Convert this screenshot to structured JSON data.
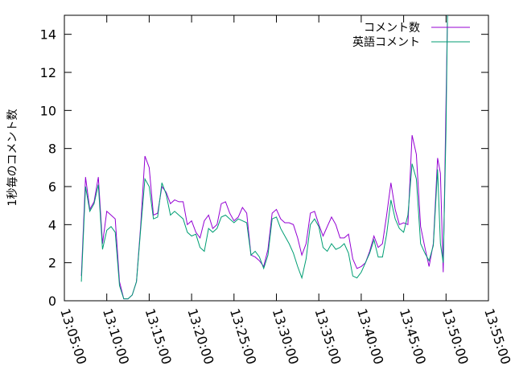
{
  "chart_data": {
    "type": "line",
    "title": "",
    "xlabel": "",
    "ylabel": "1秒毎のコメント数",
    "x_ticks": [
      "13:05:00",
      "13:10:00",
      "13:15:00",
      "13:20:00",
      "13:25:00",
      "13:30:00",
      "13:35:00",
      "13:40:00",
      "13:45:00",
      "13:50:00",
      "13:55:00"
    ],
    "xlim": [
      "13:05:00",
      "13:55:00"
    ],
    "ylim": [
      0,
      15
    ],
    "y_ticks": [
      0,
      2,
      4,
      6,
      8,
      10,
      12,
      14
    ],
    "legend_position": "top-right",
    "grid": false,
    "series": [
      {
        "name": "コメント数",
        "color": "#9400d3",
        "x": [
          "13:07:00",
          "13:07:30",
          "13:08:00",
          "13:08:30",
          "13:09:00",
          "13:09:30",
          "13:10:00",
          "13:10:30",
          "13:11:00",
          "13:11:30",
          "13:12:00",
          "13:12:30",
          "13:13:00",
          "13:13:30",
          "13:14:00",
          "13:14:30",
          "13:15:00",
          "13:15:30",
          "13:16:00",
          "13:16:30",
          "13:17:00",
          "13:17:30",
          "13:18:00",
          "13:18:30",
          "13:19:00",
          "13:19:30",
          "13:20:00",
          "13:20:30",
          "13:21:00",
          "13:21:30",
          "13:22:00",
          "13:22:30",
          "13:23:00",
          "13:23:30",
          "13:24:00",
          "13:24:30",
          "13:25:00",
          "13:25:30",
          "13:26:00",
          "13:26:30",
          "13:27:00",
          "13:27:30",
          "13:28:00",
          "13:28:30",
          "13:29:00",
          "13:29:30",
          "13:30:00",
          "13:30:30",
          "13:31:00",
          "13:31:30",
          "13:32:00",
          "13:32:30",
          "13:33:00",
          "13:33:30",
          "13:34:00",
          "13:34:30",
          "13:35:00",
          "13:35:30",
          "13:36:00",
          "13:36:30",
          "13:37:00",
          "13:37:30",
          "13:38:00",
          "13:38:30",
          "13:39:00",
          "13:39:30",
          "13:40:00",
          "13:40:30",
          "13:41:00",
          "13:41:30",
          "13:42:00",
          "13:42:30",
          "13:43:00",
          "13:43:30",
          "13:44:00",
          "13:44:30",
          "13:45:00",
          "13:45:30",
          "13:46:00",
          "13:46:30",
          "13:47:00",
          "13:47:30",
          "13:48:00",
          "13:48:30",
          "13:49:00",
          "13:49:20",
          "13:49:40",
          "13:50:00",
          "13:50:10"
        ],
        "values": [
          1.3,
          6.5,
          4.8,
          5.2,
          6.5,
          3.0,
          4.7,
          4.5,
          4.3,
          1.0,
          0.1,
          0.1,
          0.3,
          1.0,
          4.0,
          7.6,
          7.0,
          4.5,
          4.6,
          6.0,
          5.7,
          5.1,
          5.3,
          5.2,
          5.2,
          4.0,
          4.2,
          3.6,
          3.3,
          4.2,
          4.5,
          3.8,
          4.0,
          5.1,
          5.2,
          4.6,
          4.2,
          4.4,
          4.9,
          4.6,
          2.4,
          2.3,
          2.1,
          1.8,
          2.7,
          4.6,
          4.8,
          4.3,
          4.1,
          4.1,
          4.0,
          3.3,
          2.4,
          3.0,
          4.6,
          4.7,
          4.0,
          3.4,
          3.9,
          4.4,
          4.0,
          3.3,
          3.3,
          3.5,
          2.2,
          1.7,
          1.8,
          2.0,
          2.6,
          3.4,
          2.8,
          3.0,
          4.5,
          6.2,
          4.8,
          4.0,
          4.1,
          4.0,
          8.7,
          7.7,
          3.9,
          2.8,
          1.8,
          3.0,
          7.5,
          6.7,
          1.5,
          10.5,
          15.0
        ]
      },
      {
        "name": "英語コメント",
        "color": "#009e73",
        "x": [
          "13:07:00",
          "13:07:30",
          "13:08:00",
          "13:08:30",
          "13:09:00",
          "13:09:30",
          "13:10:00",
          "13:10:30",
          "13:11:00",
          "13:11:30",
          "13:12:00",
          "13:12:30",
          "13:13:00",
          "13:13:30",
          "13:14:00",
          "13:14:30",
          "13:15:00",
          "13:15:30",
          "13:16:00",
          "13:16:30",
          "13:17:00",
          "13:17:30",
          "13:18:00",
          "13:18:30",
          "13:19:00",
          "13:19:30",
          "13:20:00",
          "13:20:30",
          "13:21:00",
          "13:21:30",
          "13:22:00",
          "13:22:30",
          "13:23:00",
          "13:23:30",
          "13:24:00",
          "13:24:30",
          "13:25:00",
          "13:25:30",
          "13:26:00",
          "13:26:30",
          "13:27:00",
          "13:27:30",
          "13:28:00",
          "13:28:30",
          "13:29:00",
          "13:29:30",
          "13:30:00",
          "13:30:30",
          "13:31:00",
          "13:31:30",
          "13:32:00",
          "13:32:30",
          "13:33:00",
          "13:33:30",
          "13:34:00",
          "13:34:30",
          "13:35:00",
          "13:35:30",
          "13:36:00",
          "13:36:30",
          "13:37:00",
          "13:37:30",
          "13:38:00",
          "13:38:30",
          "13:39:00",
          "13:39:30",
          "13:40:00",
          "13:40:30",
          "13:41:00",
          "13:41:30",
          "13:42:00",
          "13:42:30",
          "13:43:00",
          "13:43:30",
          "13:44:00",
          "13:44:30",
          "13:45:00",
          "13:45:30",
          "13:46:00",
          "13:46:30",
          "13:47:00",
          "13:47:30",
          "13:48:00",
          "13:48:30",
          "13:49:00",
          "13:49:20",
          "13:49:40",
          "13:50:00",
          "13:50:10"
        ],
        "values": [
          1.0,
          6.0,
          4.7,
          5.1,
          6.1,
          2.7,
          3.7,
          3.9,
          3.6,
          0.8,
          0.1,
          0.1,
          0.3,
          1.0,
          3.8,
          6.4,
          6.0,
          4.3,
          4.4,
          6.2,
          5.6,
          4.5,
          4.7,
          4.5,
          4.3,
          3.6,
          3.4,
          3.5,
          2.8,
          2.6,
          3.8,
          3.6,
          3.8,
          4.4,
          4.5,
          4.3,
          4.1,
          4.3,
          4.2,
          4.1,
          2.4,
          2.6,
          2.3,
          1.7,
          2.4,
          4.3,
          4.4,
          3.8,
          3.4,
          3.0,
          2.5,
          1.8,
          1.2,
          2.2,
          4.0,
          4.3,
          3.9,
          2.8,
          2.6,
          3.0,
          2.7,
          2.8,
          3.0,
          2.5,
          1.3,
          1.2,
          1.5,
          2.0,
          2.5,
          3.2,
          2.3,
          2.3,
          3.5,
          5.3,
          4.3,
          3.8,
          3.6,
          4.5,
          7.2,
          6.4,
          3.0,
          2.5,
          2.1,
          2.9,
          6.9,
          3.0,
          2.0,
          9.0,
          15.0
        ]
      }
    ]
  }
}
